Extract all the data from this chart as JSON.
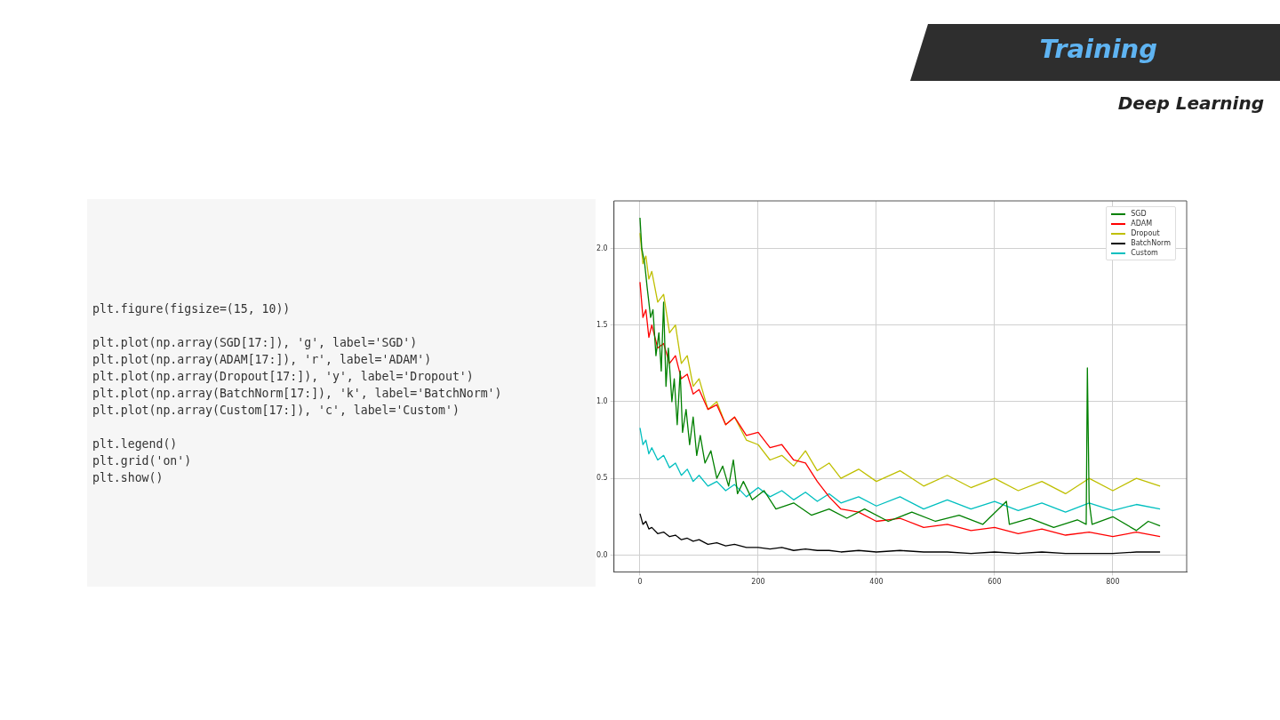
{
  "chart_data": {
    "type": "line",
    "title": "Training",
    "subtitle": "Deep Learning",
    "annotations": [
      "plt.figure(figsize=(15, 10))\n\nplt.plot(np.array(SGD[17:]), 'g', label='SGD')\nplt.plot(np.array(ADAM[17:]), 'r', label='ADAM')\nplt.plot(np.array(Dropout[17:]), 'y', label='Dropout')\nplt.plot(np.array(BatchNorm[17:]), 'k', label='BatchNorm')\nplt.plot(np.array(Custom[17:]), 'c', label='Custom')\n\nplt.legend()\nplt.grid('on')\nplt.show()"
    ],
    "x": [
      0,
      5,
      10,
      15,
      20,
      30,
      40,
      50,
      60,
      70,
      80,
      90,
      100,
      115,
      130,
      145,
      160,
      180,
      200,
      220,
      240,
      260,
      280,
      300,
      320,
      340,
      370,
      400,
      440,
      480,
      520,
      560,
      600,
      640,
      680,
      720,
      760,
      800,
      840,
      880
    ],
    "series": [
      {
        "name": "SGD",
        "color": "#008000",
        "x": [
          0,
          3,
          8,
          12,
          18,
          22,
          27,
          32,
          36,
          40,
          44,
          48,
          54,
          58,
          63,
          68,
          72,
          78,
          84,
          90,
          96,
          102,
          110,
          120,
          130,
          140,
          150,
          158,
          165,
          175,
          190,
          210,
          230,
          260,
          290,
          320,
          350,
          380,
          420,
          460,
          500,
          540,
          580,
          620,
          625,
          660,
          700,
          740,
          755,
          757,
          760,
          765,
          800,
          840,
          860,
          880
        ],
        "values": [
          2.2,
          2.0,
          1.9,
          1.75,
          1.55,
          1.6,
          1.3,
          1.45,
          1.2,
          1.65,
          1.1,
          1.35,
          1.0,
          1.15,
          0.85,
          1.2,
          0.8,
          0.95,
          0.72,
          0.9,
          0.65,
          0.78,
          0.6,
          0.68,
          0.5,
          0.58,
          0.45,
          0.62,
          0.4,
          0.48,
          0.36,
          0.42,
          0.3,
          0.34,
          0.26,
          0.3,
          0.24,
          0.3,
          0.22,
          0.28,
          0.22,
          0.26,
          0.2,
          0.35,
          0.2,
          0.24,
          0.18,
          0.23,
          0.2,
          1.22,
          0.35,
          0.2,
          0.25,
          0.16,
          0.22,
          0.19
        ]
      },
      {
        "name": "ADAM",
        "color": "#ff0000",
        "values": [
          1.78,
          1.55,
          1.6,
          1.42,
          1.5,
          1.35,
          1.38,
          1.25,
          1.3,
          1.15,
          1.18,
          1.05,
          1.08,
          0.95,
          0.98,
          0.85,
          0.9,
          0.78,
          0.8,
          0.7,
          0.72,
          0.62,
          0.6,
          0.48,
          0.38,
          0.3,
          0.28,
          0.22,
          0.24,
          0.18,
          0.2,
          0.16,
          0.18,
          0.14,
          0.17,
          0.13,
          0.15,
          0.12,
          0.15,
          0.12
        ]
      },
      {
        "name": "Dropout",
        "color": "#bfbf00",
        "values": [
          2.1,
          1.9,
          1.95,
          1.8,
          1.85,
          1.65,
          1.7,
          1.45,
          1.5,
          1.25,
          1.3,
          1.1,
          1.15,
          0.95,
          1.0,
          0.85,
          0.9,
          0.75,
          0.72,
          0.62,
          0.65,
          0.58,
          0.68,
          0.55,
          0.6,
          0.5,
          0.56,
          0.48,
          0.55,
          0.45,
          0.52,
          0.44,
          0.5,
          0.42,
          0.48,
          0.4,
          0.5,
          0.42,
          0.5,
          0.45
        ]
      },
      {
        "name": "BatchNorm",
        "color": "#000000",
        "values": [
          0.27,
          0.2,
          0.22,
          0.17,
          0.18,
          0.14,
          0.15,
          0.12,
          0.13,
          0.1,
          0.11,
          0.09,
          0.1,
          0.07,
          0.08,
          0.06,
          0.07,
          0.05,
          0.05,
          0.04,
          0.05,
          0.03,
          0.04,
          0.03,
          0.03,
          0.02,
          0.03,
          0.02,
          0.03,
          0.02,
          0.02,
          0.01,
          0.02,
          0.01,
          0.02,
          0.01,
          0.01,
          0.01,
          0.02,
          0.02
        ]
      },
      {
        "name": "Custom",
        "color": "#00bfbf",
        "values": [
          0.83,
          0.72,
          0.75,
          0.66,
          0.7,
          0.62,
          0.65,
          0.57,
          0.6,
          0.52,
          0.56,
          0.48,
          0.52,
          0.45,
          0.48,
          0.42,
          0.46,
          0.38,
          0.44,
          0.38,
          0.42,
          0.36,
          0.41,
          0.35,
          0.4,
          0.34,
          0.38,
          0.32,
          0.38,
          0.3,
          0.36,
          0.3,
          0.35,
          0.29,
          0.34,
          0.28,
          0.34,
          0.29,
          0.33,
          0.3
        ]
      }
    ],
    "xlim": [
      -44,
      925
    ],
    "xticks": [
      0,
      200,
      400,
      600,
      800
    ],
    "ylim": [
      -0.11,
      2.31
    ],
    "yticks": [
      {
        "value": 0,
        "label": "0.0"
      },
      {
        "value": 0.5,
        "label": "0.5"
      },
      {
        "value": 1,
        "label": "1.0"
      },
      {
        "value": 1.5,
        "label": "1.5"
      },
      {
        "value": 2,
        "label": "2.0"
      }
    ],
    "grid": true,
    "legend": "top right",
    "marker": "none",
    "line_style": "solid"
  }
}
